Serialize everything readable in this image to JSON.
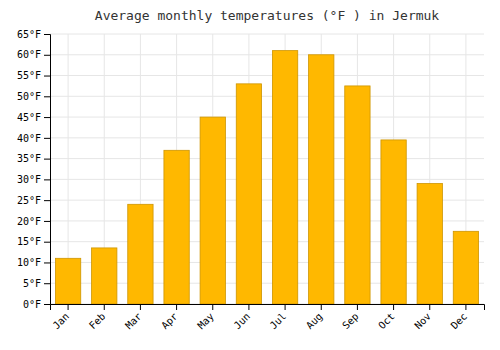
{
  "chart_data": {
    "type": "bar",
    "title": "Average monthly temperatures (°F ) in Jermuk",
    "categories": [
      "Jan",
      "Feb",
      "Mar",
      "Apr",
      "May",
      "Jun",
      "Jul",
      "Aug",
      "Sep",
      "Oct",
      "Nov",
      "Dec"
    ],
    "values": [
      11,
      13.5,
      24,
      37,
      45,
      53,
      61,
      60,
      52.5,
      39.5,
      29,
      17.5
    ],
    "color": "#FFB800",
    "ylim": [
      0,
      65
    ],
    "yticks": [
      {
        "value": 0,
        "label": "0°F"
      },
      {
        "value": 5,
        "label": "5°F"
      },
      {
        "value": 10,
        "label": "10°F"
      },
      {
        "value": 15,
        "label": "15°F"
      },
      {
        "value": 20,
        "label": "20°F"
      },
      {
        "value": 25,
        "label": "25°F"
      },
      {
        "value": 30,
        "label": "30°F"
      },
      {
        "value": 35,
        "label": "35°F"
      },
      {
        "value": 40,
        "label": "40°F"
      },
      {
        "value": 45,
        "label": "45°F"
      },
      {
        "value": 50,
        "label": "50°F"
      },
      {
        "value": 55,
        "label": "55°F"
      },
      {
        "value": 60,
        "label": "60°F"
      },
      {
        "value": 65,
        "label": "65°F"
      }
    ],
    "grid": true
  }
}
